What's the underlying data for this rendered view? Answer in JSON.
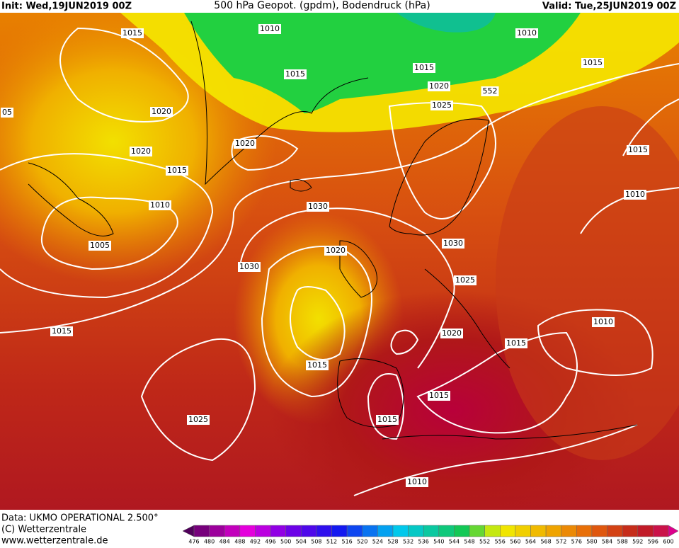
{
  "header": {
    "init": "Init: Wed,19JUN2019 00Z",
    "title": "500 hPa Geopot. (gpdm), Bodendruck (hPa)",
    "valid": "Valid: Tue,25JUN2019 00Z"
  },
  "isobar_labels": [
    "1015",
    "1010",
    "1015",
    "1015",
    "1010",
    "1015",
    "1020",
    "552",
    "1025",
    "1020",
    "1020",
    "1020",
    "1015",
    "1010",
    "1005",
    "05",
    "1030",
    "1015",
    "1010",
    "1030",
    "1020",
    "1030",
    "1025",
    "1015",
    "1010",
    "1020",
    "1015",
    "1015",
    "1015",
    "1015",
    "1025",
    "1010"
  ],
  "footer": {
    "data": "Data: UKMO OPERATIONAL 2.500°",
    "copyright": "(C) Wetterzentrale",
    "url": "www.wetterzentrale.de"
  },
  "colorbar": {
    "levels": [
      476,
      480,
      484,
      488,
      492,
      496,
      500,
      504,
      508,
      512,
      516,
      520,
      524,
      528,
      532,
      536,
      540,
      544,
      548,
      552,
      556,
      560,
      564,
      568,
      572,
      576,
      580,
      584,
      588,
      592,
      596,
      600
    ]
  }
}
